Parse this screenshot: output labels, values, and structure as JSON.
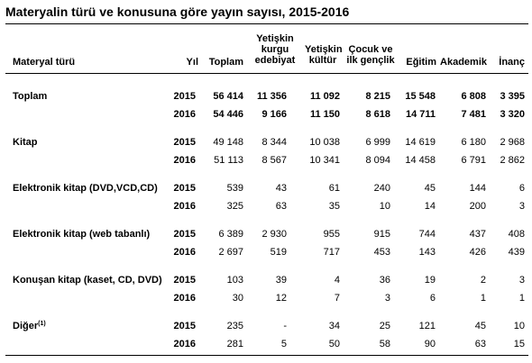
{
  "title": "Materyalin türü ve konusuna göre yayın sayısı, 2015-2016",
  "headers": {
    "material": "Materyal türü",
    "year": "Yıl",
    "total": "Toplam",
    "adult_fiction": [
      "Yetişkin",
      "kurgu",
      "edebiyat"
    ],
    "adult_culture": [
      "Yetişkin",
      "kültür"
    ],
    "children": [
      "Çocuk ve",
      "ilk gençlik"
    ],
    "education": "Eğitim",
    "academic": "Akademik",
    "faith": "İnanç"
  },
  "rows": [
    {
      "label": "Toplam",
      "bold": true,
      "years": [
        {
          "year": "2015",
          "v": [
            "56 414",
            "11 356",
            "11 092",
            "8 215",
            "15 548",
            "6 808",
            "3 395"
          ]
        },
        {
          "year": "2016",
          "v": [
            "54 446",
            "9 166",
            "11 150",
            "8 618",
            "14 711",
            "7 481",
            "3 320"
          ]
        }
      ]
    },
    {
      "label": "Kitap",
      "bold": false,
      "years": [
        {
          "year": "2015",
          "v": [
            "49 148",
            "8 344",
            "10 038",
            "6 999",
            "14 619",
            "6 180",
            "2 968"
          ]
        },
        {
          "year": "2016",
          "v": [
            "51 113",
            "8 567",
            "10 341",
            "8 094",
            "14 458",
            "6 791",
            "2 862"
          ]
        }
      ]
    },
    {
      "label": "Elektronik kitap (DVD,VCD,CD)",
      "bold": false,
      "years": [
        {
          "year": "2015",
          "v": [
            "539",
            "43",
            "61",
            "240",
            "45",
            "144",
            "6"
          ]
        },
        {
          "year": "2016",
          "v": [
            "325",
            "63",
            "35",
            "10",
            "14",
            "200",
            "3"
          ]
        }
      ]
    },
    {
      "label": "Elektronik kitap (web tabanlı)",
      "bold": false,
      "years": [
        {
          "year": "2015",
          "v": [
            "6 389",
            "2 930",
            "955",
            "915",
            "744",
            "437",
            "408"
          ]
        },
        {
          "year": "2016",
          "v": [
            "2 697",
            "519",
            "717",
            "453",
            "143",
            "426",
            "439"
          ]
        }
      ]
    },
    {
      "label": "Konuşan kitap (kaset, CD, DVD)",
      "bold": false,
      "years": [
        {
          "year": "2015",
          "v": [
            "103",
            "39",
            "4",
            "36",
            "19",
            "2",
            "3"
          ]
        },
        {
          "year": "2016",
          "v": [
            "30",
            "12",
            "7",
            "3",
            "6",
            "1",
            "1"
          ]
        }
      ]
    },
    {
      "label": "Diğer",
      "sup": "(1)",
      "bold": false,
      "years": [
        {
          "year": "2015",
          "v": [
            "235",
            "-",
            "34",
            "25",
            "121",
            "45",
            "10"
          ]
        },
        {
          "year": "2016",
          "v": [
            "281",
            "5",
            "50",
            "58",
            "90",
            "63",
            "15"
          ]
        }
      ]
    }
  ]
}
